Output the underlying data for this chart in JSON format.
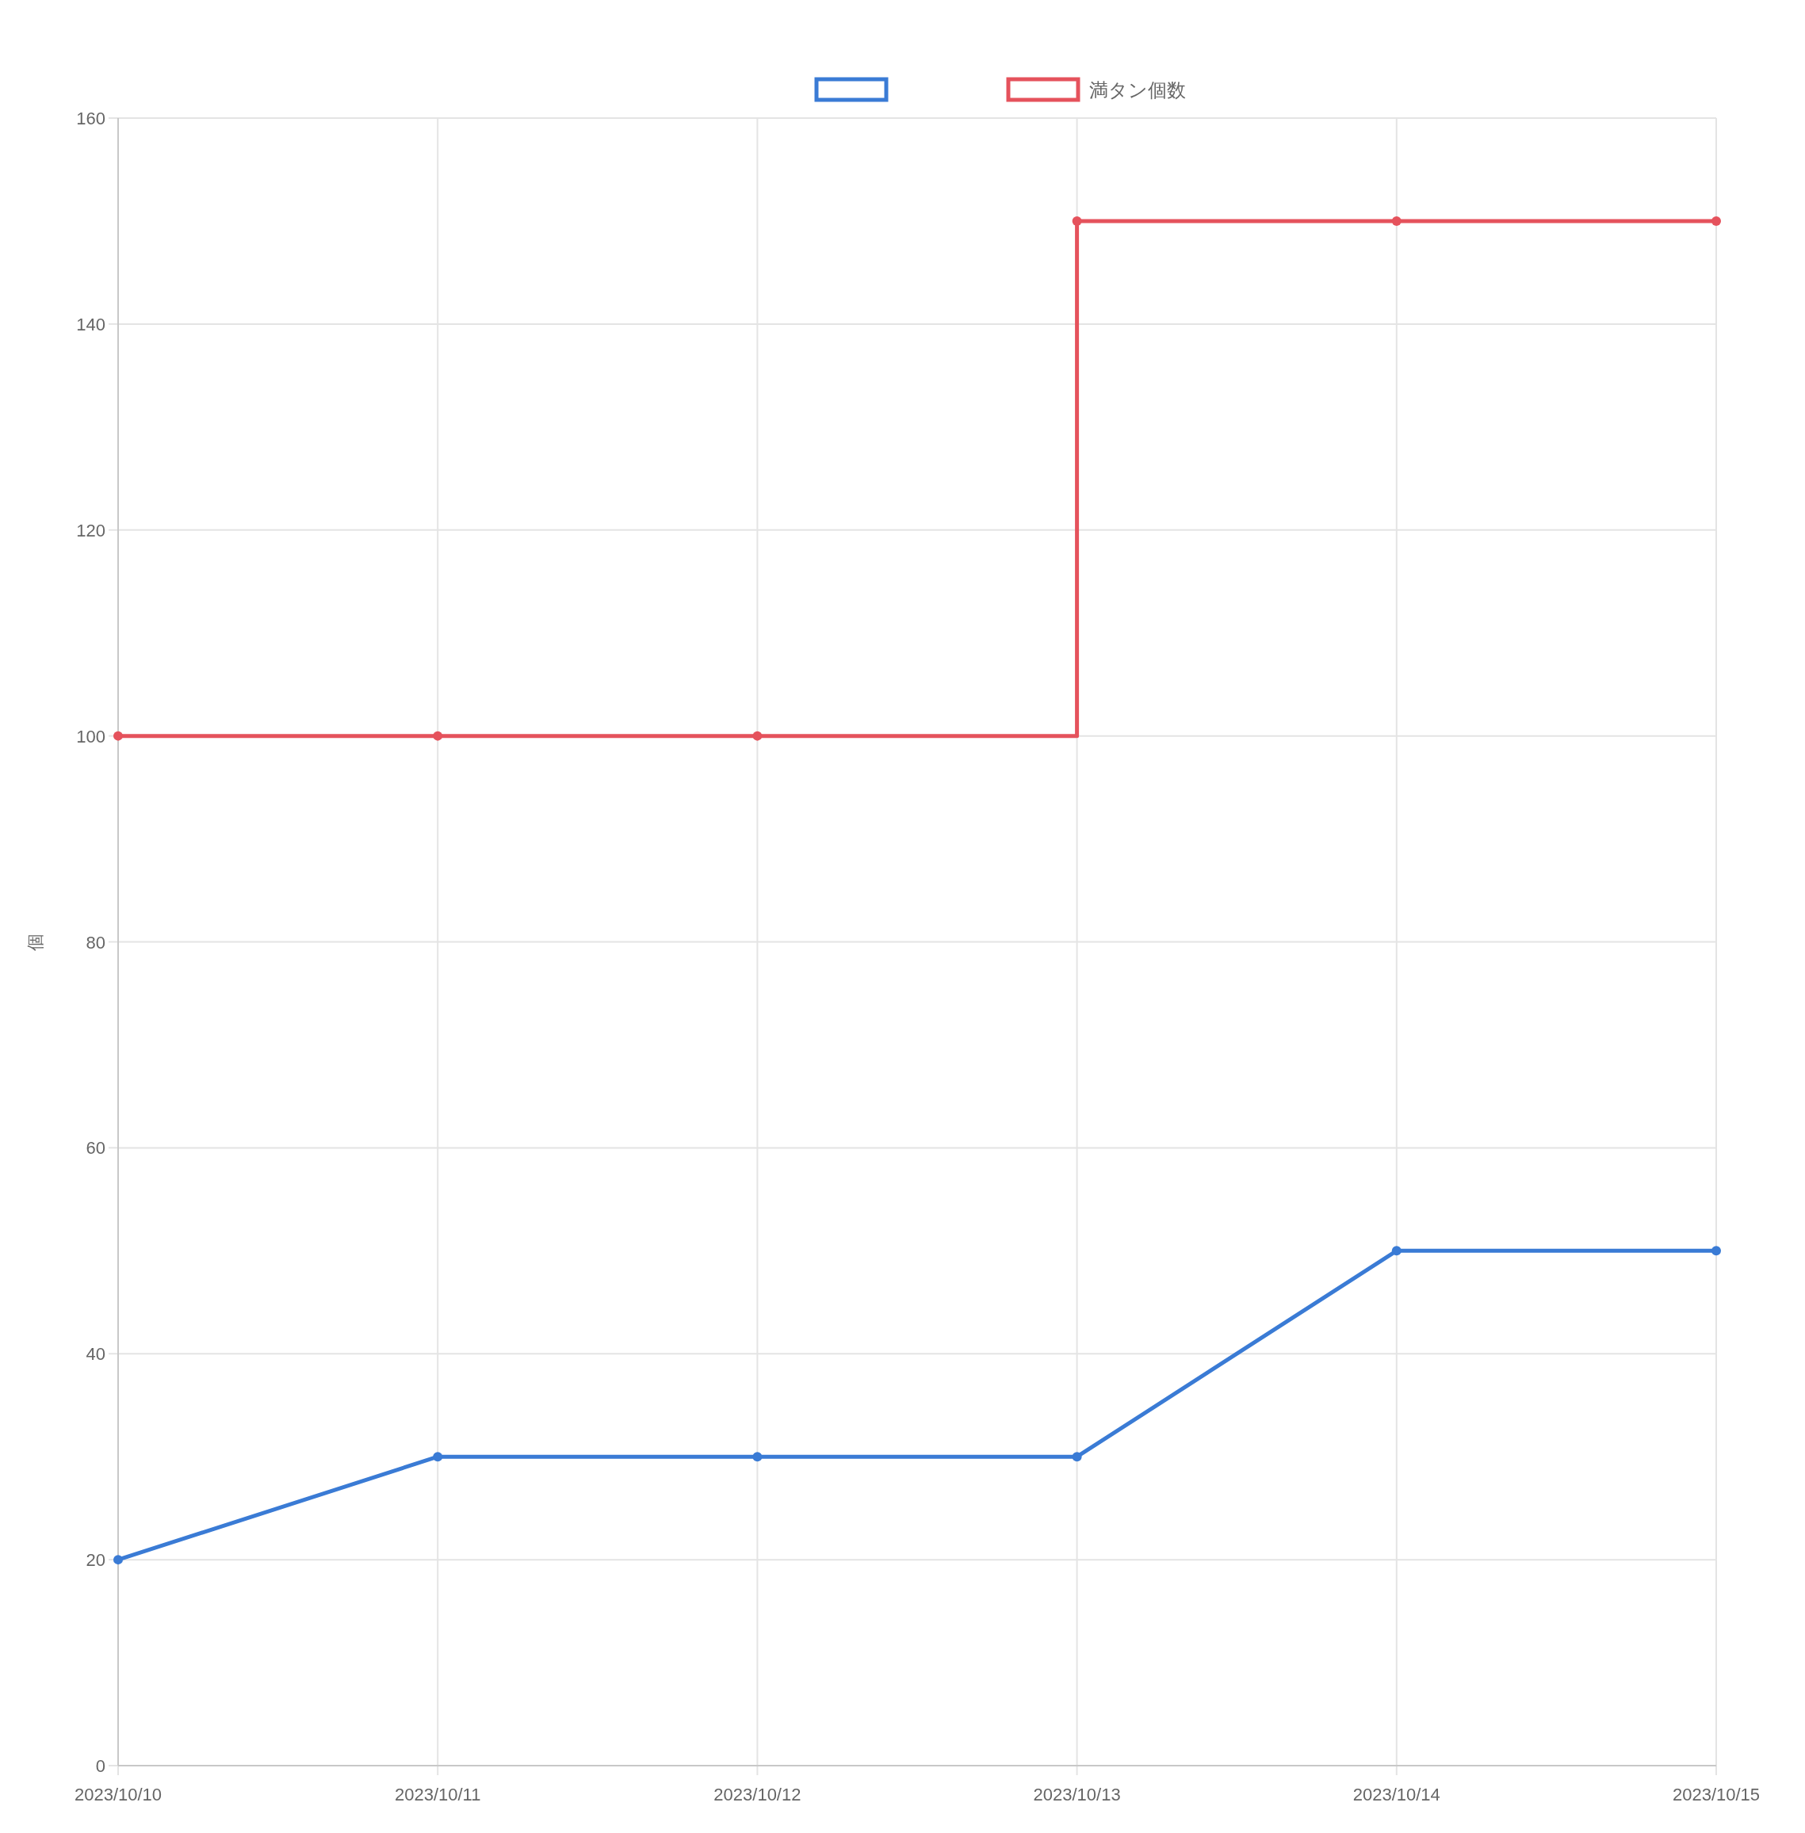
{
  "chart_data": {
    "type": "line",
    "ylabel": "個",
    "categories": [
      "2023/10/10",
      "2023/10/11",
      "2023/10/12",
      "2023/10/13",
      "2023/10/14",
      "2023/10/15"
    ],
    "series": [
      {
        "color": "#3a7bd5",
        "values": [
          20,
          30,
          30,
          30,
          50,
          50
        ]
      },
      {
        "name": "満タン個数",
        "type": "step",
        "color": "#e5525c",
        "values": [
          100,
          100,
          100,
          150,
          150,
          150
        ]
      }
    ],
    "ylim": [
      0,
      160
    ],
    "yticks": [
      0,
      20,
      40,
      60,
      80,
      100,
      120,
      140,
      160
    ],
    "grid": true,
    "legend": "top",
    "marker": "circle"
  }
}
